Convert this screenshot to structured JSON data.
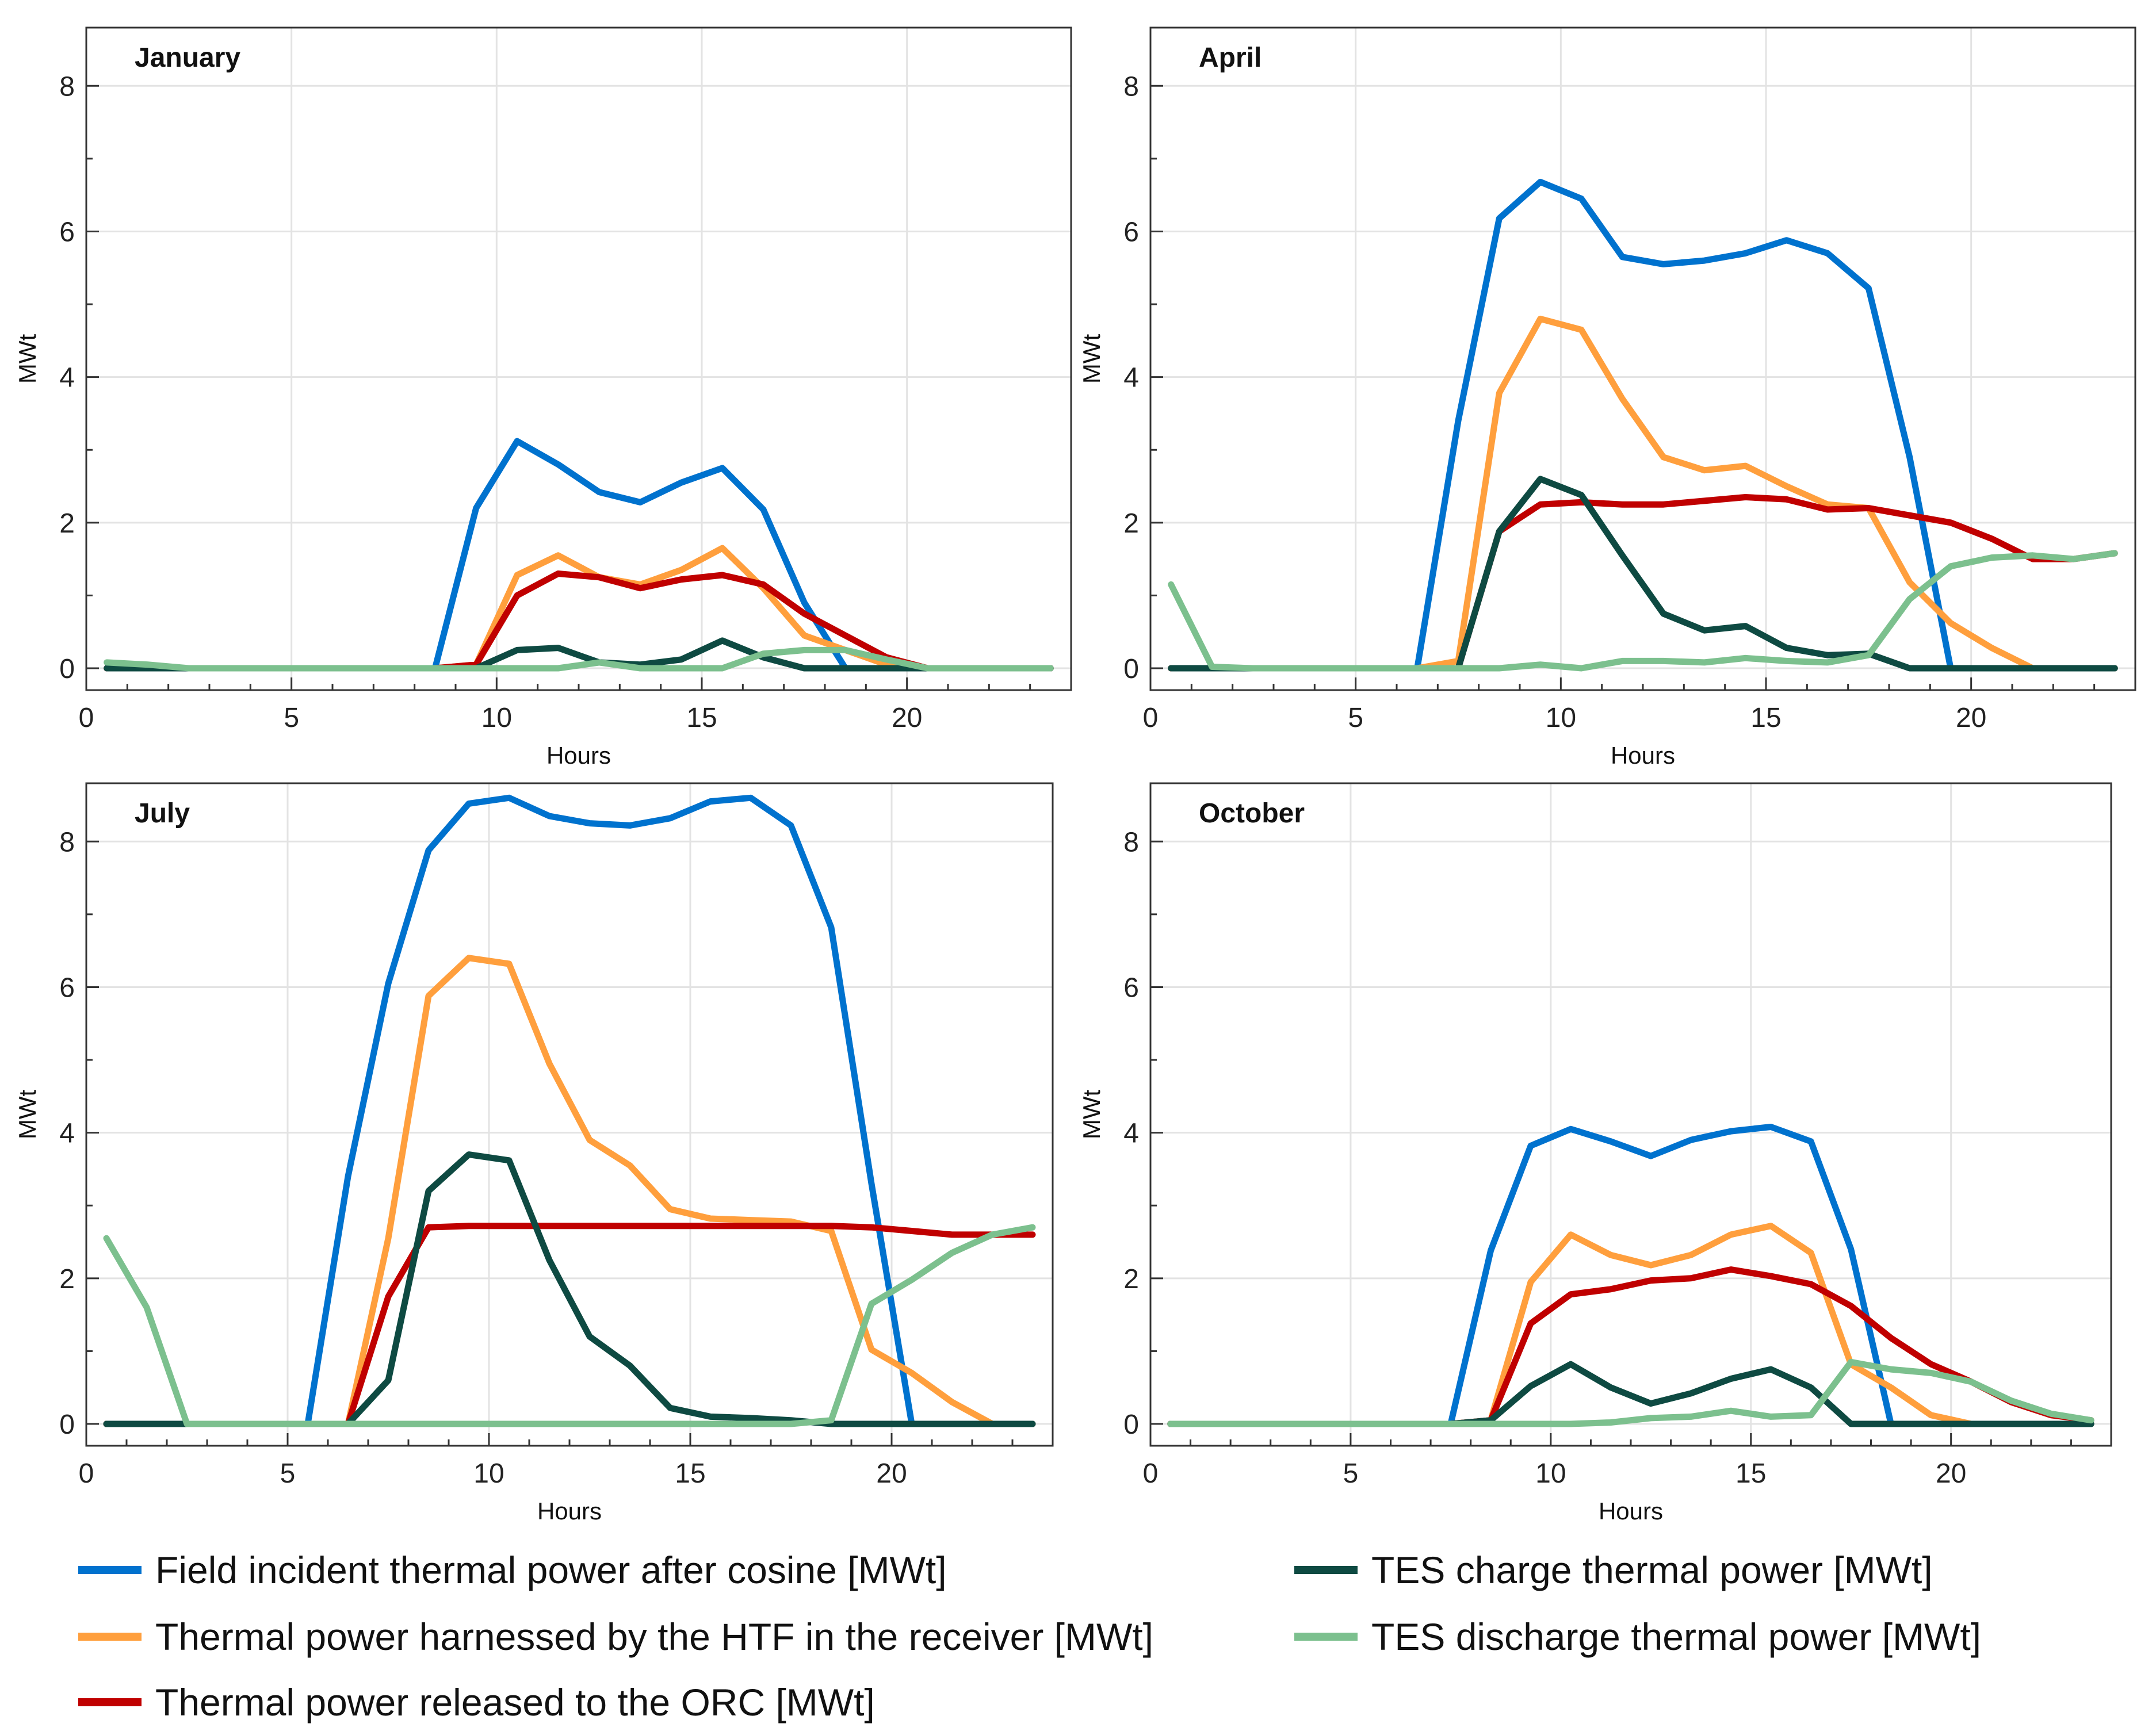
{
  "chart_data": [
    {
      "type": "line",
      "title": "January",
      "xlabel": "Hours",
      "ylabel": "MWt",
      "xlim": [
        0,
        24
      ],
      "ylim": [
        -0.3,
        8.8
      ],
      "xticks": [
        0,
        5,
        10,
        15,
        20
      ],
      "yticks": [
        0,
        2,
        4,
        6,
        8
      ],
      "grid": true,
      "x": [
        0.5,
        1.5,
        2.5,
        3.5,
        4.5,
        5.5,
        6.5,
        7.5,
        8.5,
        9.5,
        10.5,
        11.5,
        12.5,
        13.5,
        14.5,
        15.5,
        16.5,
        17.5,
        18.5,
        19.5,
        20.5,
        21.5,
        22.5,
        23.5
      ],
      "series": [
        {
          "name": "Field incident thermal power after cosine [MWt]",
          "values": [
            0,
            0,
            0,
            0,
            0,
            0,
            0,
            0,
            0,
            2.2,
            3.12,
            2.8,
            2.42,
            2.28,
            2.55,
            2.75,
            2.18,
            0.9,
            0,
            0,
            0,
            0,
            0,
            0
          ]
        },
        {
          "name": "Thermal power harnessed by the HTF in the receiver [MWt]",
          "values": [
            0,
            0,
            0,
            0,
            0,
            0,
            0,
            0,
            0,
            0.05,
            1.28,
            1.55,
            1.25,
            1.15,
            1.35,
            1.65,
            1.1,
            0.45,
            0.25,
            0.05,
            0,
            0,
            0,
            0
          ]
        },
        {
          "name": "Thermal power released to the ORC [MWt]",
          "values": [
            0,
            0,
            0,
            0,
            0,
            0,
            0,
            0,
            0,
            0.05,
            1.0,
            1.3,
            1.25,
            1.1,
            1.22,
            1.28,
            1.15,
            0.75,
            0.45,
            0.15,
            0,
            0,
            0,
            0
          ]
        },
        {
          "name": "TES charge thermal power [MWt]",
          "values": [
            0,
            0,
            0,
            0,
            0,
            0,
            0,
            0,
            0,
            0,
            0.25,
            0.28,
            0.08,
            0.05,
            0.12,
            0.38,
            0.15,
            0,
            0,
            0,
            0,
            0,
            0,
            0
          ]
        },
        {
          "name": "TES discharge thermal power [MWt]",
          "values": [
            0.08,
            0.05,
            0,
            0,
            0,
            0,
            0,
            0,
            0,
            0,
            0,
            0,
            0.08,
            0,
            0,
            0,
            0.2,
            0.25,
            0.25,
            0.12,
            0,
            0,
            0,
            0
          ]
        }
      ]
    },
    {
      "type": "line",
      "title": "April",
      "xlabel": "Hours",
      "ylabel": "MWt",
      "xlim": [
        0,
        24
      ],
      "ylim": [
        -0.3,
        8.8
      ],
      "xticks": [
        0,
        5,
        10,
        15,
        20
      ],
      "yticks": [
        0,
        2,
        4,
        6,
        8
      ],
      "grid": true,
      "x": [
        0.5,
        1.5,
        2.5,
        3.5,
        4.5,
        5.5,
        6.5,
        7.5,
        8.5,
        9.5,
        10.5,
        11.5,
        12.5,
        13.5,
        14.5,
        15.5,
        16.5,
        17.5,
        18.5,
        19.5,
        20.5,
        21.5,
        22.5,
        23.5
      ],
      "series": [
        {
          "name": "Field incident thermal power after cosine [MWt]",
          "values": [
            0,
            0,
            0,
            0,
            0,
            0,
            0,
            3.4,
            6.18,
            6.68,
            6.45,
            5.65,
            5.55,
            5.6,
            5.7,
            5.88,
            5.7,
            5.22,
            2.9,
            0,
            0,
            0,
            0,
            0
          ]
        },
        {
          "name": "Thermal power harnessed by the HTF in the receiver [MWt]",
          "values": [
            0,
            0,
            0,
            0,
            0,
            0,
            0,
            0.1,
            3.78,
            4.8,
            4.65,
            3.7,
            2.9,
            2.72,
            2.78,
            2.5,
            2.25,
            2.2,
            1.18,
            0.62,
            0.28,
            0,
            0,
            0
          ]
        },
        {
          "name": "Thermal power released to the ORC [MWt]",
          "values": [
            0,
            0,
            0,
            0,
            0,
            0,
            0,
            0,
            1.88,
            2.25,
            2.28,
            2.25,
            2.25,
            2.3,
            2.35,
            2.32,
            2.18,
            2.2,
            2.1,
            2.0,
            1.78,
            1.5,
            1.5,
            1.58
          ]
        },
        {
          "name": "TES charge thermal power [MWt]",
          "values": [
            0,
            0,
            0,
            0,
            0,
            0,
            0,
            0,
            1.88,
            2.6,
            2.38,
            1.55,
            0.75,
            0.52,
            0.58,
            0.28,
            0.18,
            0.2,
            0,
            0,
            0,
            0,
            0,
            0
          ]
        },
        {
          "name": "TES discharge thermal power [MWt]",
          "values": [
            1.15,
            0.02,
            0,
            0,
            0,
            0,
            0,
            0,
            0,
            0.05,
            0,
            0.1,
            0.1,
            0.08,
            0.14,
            0.1,
            0.08,
            0.18,
            0.95,
            1.4,
            1.52,
            1.55,
            1.5,
            1.58
          ]
        }
      ]
    },
    {
      "type": "line",
      "title": "July",
      "xlabel": "Hours",
      "ylabel": "MWt",
      "xlim": [
        0,
        24
      ],
      "ylim": [
        -0.3,
        8.8
      ],
      "xticks": [
        0,
        5,
        10,
        15,
        20
      ],
      "yticks": [
        0,
        2,
        4,
        6,
        8
      ],
      "grid": true,
      "x": [
        0.5,
        1.5,
        2.5,
        3.5,
        4.5,
        5.5,
        6.5,
        7.5,
        8.5,
        9.5,
        10.5,
        11.5,
        12.5,
        13.5,
        14.5,
        15.5,
        16.5,
        17.5,
        18.5,
        19.5,
        20.5,
        21.5,
        22.5,
        23.5
      ],
      "series": [
        {
          "name": "Field incident thermal power after cosine [MWt]",
          "values": [
            0,
            0,
            0,
            0,
            0,
            0,
            3.4,
            6.05,
            7.88,
            8.52,
            8.6,
            8.35,
            8.25,
            8.22,
            8.32,
            8.55,
            8.6,
            8.22,
            6.82,
            3.3,
            0,
            0,
            0,
            0
          ]
        },
        {
          "name": "Thermal power harnessed by the HTF in the receiver [MWt]",
          "values": [
            0,
            0,
            0,
            0,
            0,
            0,
            0,
            2.55,
            5.88,
            6.4,
            6.32,
            4.95,
            3.9,
            3.55,
            2.95,
            2.82,
            2.8,
            2.78,
            2.65,
            1.02,
            0.7,
            0.3,
            0,
            0
          ]
        },
        {
          "name": "Thermal power released to the ORC [MWt]",
          "values": [
            0,
            0,
            0,
            0,
            0,
            0,
            0,
            1.75,
            2.7,
            2.72,
            2.72,
            2.72,
            2.72,
            2.72,
            2.72,
            2.72,
            2.72,
            2.72,
            2.72,
            2.7,
            2.65,
            2.6,
            2.6,
            2.6
          ]
        },
        {
          "name": "TES charge thermal power [MWt]",
          "values": [
            0,
            0,
            0,
            0,
            0,
            0,
            0,
            0.6,
            3.2,
            3.7,
            3.62,
            2.25,
            1.2,
            0.8,
            0.22,
            0.1,
            0.08,
            0.05,
            0,
            0,
            0,
            0,
            0,
            0
          ]
        },
        {
          "name": "TES discharge thermal power [MWt]",
          "values": [
            2.55,
            1.6,
            0,
            0,
            0,
            0,
            0,
            0,
            0,
            0,
            0,
            0,
            0,
            0,
            0,
            0,
            0,
            0,
            0.05,
            1.65,
            1.98,
            2.35,
            2.6,
            2.7
          ]
        }
      ]
    },
    {
      "type": "line",
      "title": "October",
      "xlabel": "Hours",
      "ylabel": "MWt",
      "xlim": [
        0,
        24
      ],
      "ylim": [
        -0.3,
        8.8
      ],
      "xticks": [
        0,
        5,
        10,
        15,
        20
      ],
      "yticks": [
        0,
        2,
        4,
        6,
        8
      ],
      "grid": true,
      "x": [
        0.5,
        1.5,
        2.5,
        3.5,
        4.5,
        5.5,
        6.5,
        7.5,
        8.5,
        9.5,
        10.5,
        11.5,
        12.5,
        13.5,
        14.5,
        15.5,
        16.5,
        17.5,
        18.5,
        19.5,
        20.5,
        21.5,
        22.5,
        23.5
      ],
      "series": [
        {
          "name": "Field incident thermal power after cosine [MWt]",
          "values": [
            0,
            0,
            0,
            0,
            0,
            0,
            0,
            0,
            2.38,
            3.82,
            4.05,
            3.88,
            3.68,
            3.9,
            4.02,
            4.08,
            3.88,
            2.4,
            0,
            0,
            0,
            0,
            0,
            0
          ]
        },
        {
          "name": "Thermal power harnessed by the HTF in the receiver [MWt]",
          "values": [
            0,
            0,
            0,
            0,
            0,
            0,
            0,
            0,
            0.05,
            1.95,
            2.6,
            2.32,
            2.18,
            2.32,
            2.6,
            2.72,
            2.35,
            0.82,
            0.5,
            0.12,
            0,
            0,
            0,
            0
          ]
        },
        {
          "name": "Thermal power released to the ORC [MWt]",
          "values": [
            0,
            0,
            0,
            0,
            0,
            0,
            0,
            0,
            0.05,
            1.38,
            1.78,
            1.85,
            1.97,
            2.0,
            2.12,
            2.03,
            1.92,
            1.62,
            1.18,
            0.82,
            0.58,
            0.3,
            0.12,
            0.05
          ]
        },
        {
          "name": "TES charge thermal power [MWt]",
          "values": [
            0,
            0,
            0,
            0,
            0,
            0,
            0,
            0,
            0.05,
            0.52,
            0.82,
            0.5,
            0.28,
            0.42,
            0.62,
            0.75,
            0.5,
            0,
            0,
            0,
            0,
            0,
            0,
            0
          ]
        },
        {
          "name": "TES discharge thermal power [MWt]",
          "values": [
            0,
            0,
            0,
            0,
            0,
            0,
            0,
            0,
            0,
            0,
            0,
            0.02,
            0.08,
            0.1,
            0.18,
            0.1,
            0.12,
            0.85,
            0.75,
            0.7,
            0.58,
            0.32,
            0.14,
            0.05
          ]
        }
      ]
    }
  ],
  "legend": [
    {
      "label": "Field incident thermal power after cosine [MWt]",
      "color": "#0072CE"
    },
    {
      "label": "Thermal power harnessed by the HTF in the receiver [MWt]",
      "color": "#FF9F3D"
    },
    {
      "label": "Thermal power released to the ORC [MWt]",
      "color": "#C00000"
    },
    {
      "label": "TES charge thermal power [MWt]",
      "color": "#0E4A42"
    },
    {
      "label": "TES discharge thermal power [MWt]",
      "color": "#7CC08E"
    }
  ]
}
